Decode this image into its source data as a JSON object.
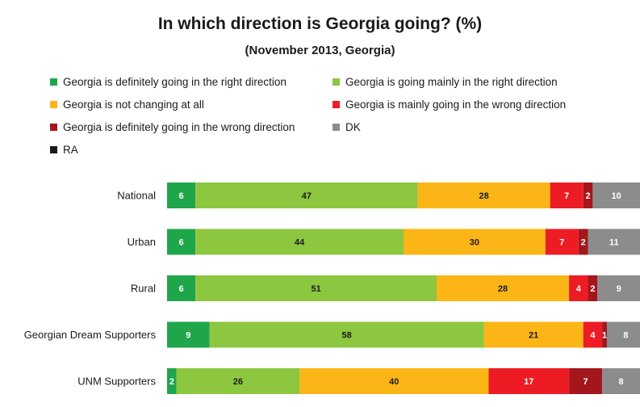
{
  "title": "In which direction is Georgia going? (%)",
  "subtitle": "(November 2013, Georgia)",
  "chart_data": {
    "type": "bar",
    "orientation": "horizontal",
    "stacked": true,
    "categories": [
      "National",
      "Urban",
      "Rural",
      "Georgian Dream Supporters",
      "UNM Supporters"
    ],
    "series": [
      {
        "name": "Georgia is definitely going in the right direction",
        "color": "#1fa64a",
        "values": [
          6,
          6,
          6,
          9,
          2
        ]
      },
      {
        "name": "Georgia is going mainly in the right direction",
        "color": "#8dc63f",
        "values": [
          47,
          44,
          51,
          58,
          26
        ]
      },
      {
        "name": "Georgia is not changing at all",
        "color": "#fbb516",
        "values": [
          28,
          30,
          28,
          21,
          40
        ]
      },
      {
        "name": "Georgia is mainly going in the wrong direction",
        "color": "#ed1c24",
        "values": [
          7,
          7,
          4,
          4,
          17
        ]
      },
      {
        "name": "Georgia is definitely going in the wrong direction",
        "color": "#a3161c",
        "values": [
          2,
          2,
          2,
          1,
          7
        ]
      },
      {
        "name": "DK",
        "color": "#8c8c8c",
        "values": [
          10,
          11,
          9,
          8,
          8
        ]
      },
      {
        "name": "RA",
        "color": "#1a1a1a",
        "values": [
          0,
          0,
          0,
          0,
          0
        ]
      }
    ],
    "xlim": [
      0,
      100
    ],
    "grid": false,
    "legend_position": "top"
  }
}
